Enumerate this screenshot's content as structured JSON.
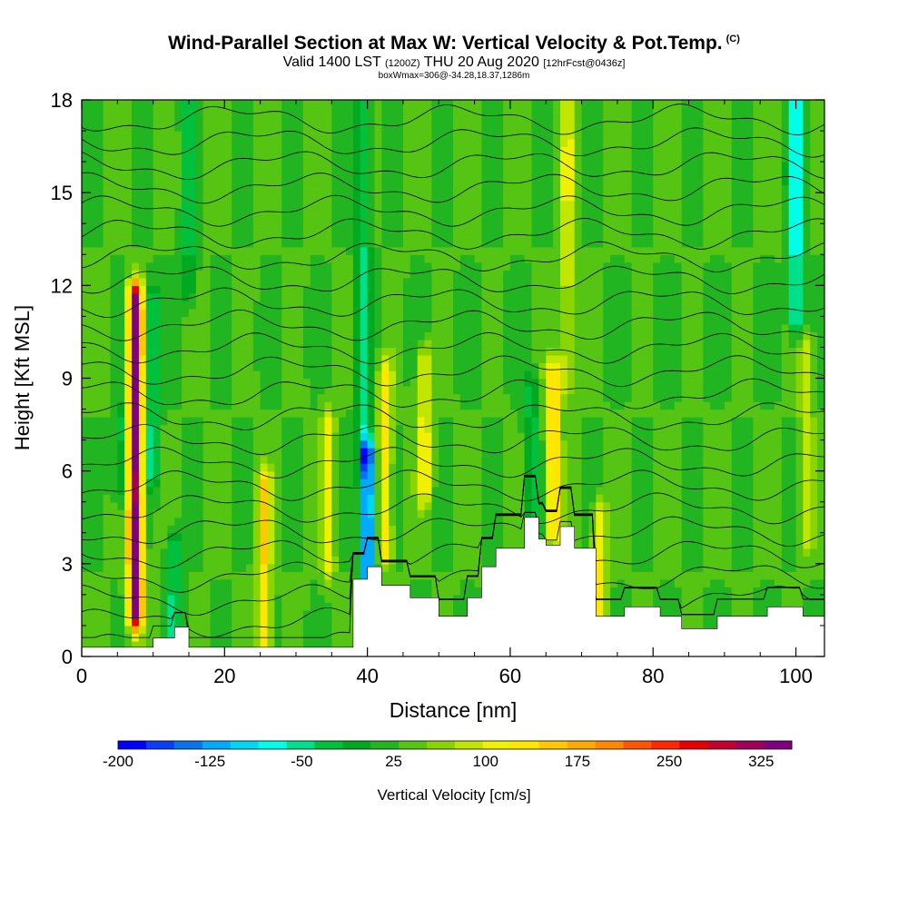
{
  "title": {
    "main": "Wind-Parallel Section at Max W: Vertical Velocity & Pot.Temp.",
    "copyright": "(C)",
    "valid_prefix": "Valid 1400 LST",
    "valid_utc": "(1200Z)",
    "valid_date": "THU 20 Aug 2020",
    "forecast": "[12hrFcst@0436z]",
    "box_info": "boxWmax=306@-34.28,18.37,1286m"
  },
  "chart_data": {
    "type": "heatmap",
    "xlabel": "Distance [nm]",
    "ylabel": "Height [Kft MSL]",
    "x_ticks": [
      "0",
      "20",
      "40",
      "60",
      "80",
      "100"
    ],
    "y_ticks": [
      "0",
      "3",
      "6",
      "9",
      "12",
      "15",
      "18"
    ],
    "xlim": [
      0,
      104
    ],
    "ylim": [
      0,
      18
    ],
    "colorbar": {
      "label": "Vertical Velocity [cm/s]",
      "tick_labels": [
        "-200",
        "-125",
        "-50",
        "25",
        "100",
        "175",
        "250",
        "325"
      ],
      "tick_values": [
        -200,
        -125,
        -50,
        25,
        100,
        175,
        250,
        325
      ],
      "range": [
        -200,
        350
      ],
      "colors": [
        "#0000ff",
        "#0a3ff5",
        "#0a73f0",
        "#00aaff",
        "#00d7f5",
        "#00ffe8",
        "#00e08a",
        "#00c03c",
        "#00aa20",
        "#22b522",
        "#55c412",
        "#8ad400",
        "#c2e600",
        "#f0f000",
        "#ffe600",
        "#ffc800",
        "#ffaa00",
        "#ff8800",
        "#ff5500",
        "#ff2800",
        "#e60000",
        "#c40030",
        "#a0005a",
        "#800080"
      ]
    },
    "background_w": 30,
    "features": [
      {
        "x": 7.5,
        "y_bottom": 1.5,
        "y_top": 11.5,
        "w_max": 306
      },
      {
        "x": 5.5,
        "y_bottom": 5.5,
        "y_top": 7.5,
        "w_max": -60
      },
      {
        "x": 9.8,
        "y_bottom": 6.0,
        "y_top": 11.5,
        "w_max": -80
      },
      {
        "x": 13.0,
        "y_bottom": 0.6,
        "y_top": 3.5,
        "w_max": -80
      },
      {
        "x": 15.0,
        "y_bottom": 12.0,
        "y_top": 18.0,
        "w_max": -60
      },
      {
        "x": 25.5,
        "y_bottom": 0.5,
        "y_top": 5.5,
        "w_max": 110
      },
      {
        "x": 34.5,
        "y_bottom": 3.0,
        "y_top": 7.5,
        "w_max": 70
      },
      {
        "x": 40.0,
        "y_bottom": 2.8,
        "y_top": 6.5,
        "w_max": -200
      },
      {
        "x": 39.5,
        "y_bottom": 6.5,
        "y_top": 18.0,
        "w_max": -70
      },
      {
        "x": 42.5,
        "y_bottom": 3.5,
        "y_top": 9.0,
        "w_max": 100
      },
      {
        "x": 48.0,
        "y_bottom": 5.5,
        "y_top": 9.5,
        "w_max": 85
      },
      {
        "x": 63.0,
        "y_bottom": 4.0,
        "y_top": 8.5,
        "w_max": -60
      },
      {
        "x": 66.0,
        "y_bottom": 4.2,
        "y_top": 9.0,
        "w_max": 130
      },
      {
        "x": 68.0,
        "y_bottom": 9.0,
        "y_top": 18.0,
        "w_max": 70
      },
      {
        "x": 72.5,
        "y_bottom": 1.5,
        "y_top": 4.5,
        "w_max": 95
      },
      {
        "x": 100.0,
        "y_bottom": 11.0,
        "y_top": 18.0,
        "w_max": -120
      },
      {
        "x": 101.5,
        "y_bottom": 4.0,
        "y_top": 10.0,
        "w_max": 60
      }
    ],
    "terrain": {
      "x": [
        0,
        10,
        10,
        13,
        13,
        15,
        15,
        38,
        38,
        40,
        40,
        42,
        42,
        46,
        46,
        50,
        50,
        54,
        54,
        56,
        56,
        58,
        58,
        62,
        62,
        64,
        64,
        65,
        65,
        67,
        67,
        69,
        69,
        72,
        72,
        76,
        76,
        81,
        81,
        84,
        84,
        89,
        89,
        96,
        96,
        101,
        101,
        104
      ],
      "h": [
        0.3,
        0.3,
        0.6,
        0.6,
        0.95,
        0.95,
        0.3,
        0.3,
        2.5,
        2.5,
        2.9,
        2.9,
        2.3,
        2.3,
        1.9,
        1.9,
        1.3,
        1.3,
        1.9,
        1.9,
        2.9,
        2.9,
        3.5,
        3.5,
        4.5,
        4.5,
        3.8,
        3.8,
        3.6,
        3.6,
        4.2,
        4.2,
        3.5,
        3.5,
        1.3,
        1.3,
        1.6,
        1.6,
        1.3,
        1.3,
        0.9,
        0.9,
        1.3,
        1.3,
        1.6,
        1.6,
        1.3,
        1.3
      ]
    },
    "isentropes": {
      "count": 24,
      "base_height": 0.35,
      "spacing": 0.74,
      "line_color": "#000000"
    }
  }
}
